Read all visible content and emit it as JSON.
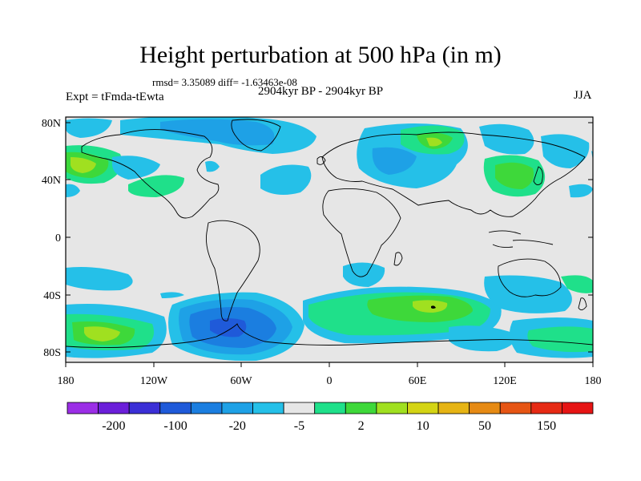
{
  "title": "Height perturbation at 500 hPa (in m)",
  "stats": "rmsd= 3.35089 diff= -1.63463e-08",
  "period": "2904kyr BP - 2904kyr BP",
  "experiment": "Expt = tFmda-tEwta",
  "season": "JJA",
  "map": {
    "lon_range": [
      -180,
      180
    ],
    "lat_range": [
      -90,
      90
    ],
    "lat_ticks": [
      "80N",
      "40N",
      "0",
      "40S",
      "80S"
    ],
    "lon_ticks": [
      "180",
      "120W",
      "60W",
      "0",
      "60E",
      "120E",
      "180"
    ]
  },
  "colorbar": {
    "colors": [
      "#9b2ee6",
      "#6b1fd9",
      "#3b2fd6",
      "#1f5ad9",
      "#1b7ee0",
      "#1ea1e6",
      "#25c0e8",
      "#e6e6e6",
      "#1fe08a",
      "#3ed83a",
      "#a0e020",
      "#d4d414",
      "#e6b414",
      "#e68a14",
      "#e65514",
      "#e62a14",
      "#e61414"
    ],
    "labels": [
      "-200",
      "-100",
      "-20",
      "-5",
      "2",
      "10",
      "50",
      "150"
    ]
  }
}
